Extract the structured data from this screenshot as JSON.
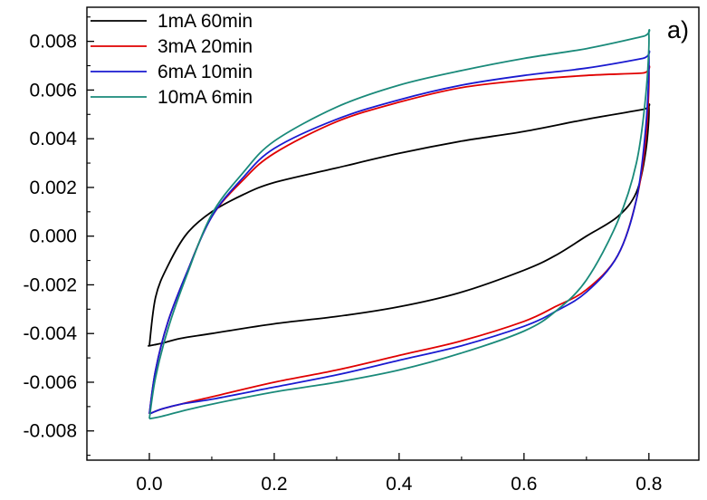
{
  "chart_data": {
    "type": "line",
    "panel_label": "a)",
    "title": "",
    "xlabel": "",
    "ylabel": "",
    "xlim": [
      -0.1,
      0.88
    ],
    "ylim": [
      -0.0092,
      0.0094
    ],
    "x_ticks": [
      0.0,
      0.2,
      0.4,
      0.6,
      0.8
    ],
    "x_tick_labels": [
      "0.0",
      "0.2",
      "0.4",
      "0.6",
      "0.8"
    ],
    "y_ticks": [
      0.008,
      0.006,
      0.004,
      0.002,
      0.0,
      -0.002,
      -0.004,
      -0.006,
      -0.008
    ],
    "y_tick_labels": [
      "0.008",
      "0.006",
      "0.004",
      "0.002",
      "0.000",
      "-0.002",
      "-0.004",
      "-0.006",
      "-0.008"
    ],
    "grid": false,
    "legend_position": "top-left",
    "series": [
      {
        "name": "1mA 60min",
        "color": "#000000",
        "x": [
          0.0,
          0.01,
          0.03,
          0.06,
          0.1,
          0.15,
          0.2,
          0.3,
          0.4,
          0.5,
          0.6,
          0.7,
          0.79,
          0.8,
          0.795,
          0.78,
          0.75,
          0.7,
          0.65,
          0.6,
          0.5,
          0.4,
          0.3,
          0.2,
          0.1,
          0.05,
          0.02,
          0.0,
          0.0
        ],
        "y": [
          -0.0045,
          -0.0025,
          -0.0012,
          0.0001,
          0.001,
          0.0017,
          0.0022,
          0.0028,
          0.0034,
          0.0039,
          0.0043,
          0.0048,
          0.0052,
          0.0053,
          0.0035,
          0.0018,
          0.0008,
          0.0,
          -0.0008,
          -0.0014,
          -0.0023,
          -0.0029,
          -0.0033,
          -0.0036,
          -0.004,
          -0.0042,
          -0.0044,
          -0.0045,
          -0.0045
        ]
      },
      {
        "name": "3mA 20min",
        "color": "#e00000",
        "x": [
          0.0,
          0.01,
          0.03,
          0.06,
          0.1,
          0.15,
          0.2,
          0.3,
          0.4,
          0.5,
          0.6,
          0.7,
          0.79,
          0.8,
          0.795,
          0.78,
          0.75,
          0.7,
          0.65,
          0.6,
          0.5,
          0.4,
          0.3,
          0.2,
          0.1,
          0.05,
          0.02,
          0.0
        ],
        "y": [
          -0.0073,
          -0.0055,
          -0.0035,
          -0.0015,
          0.0008,
          0.0023,
          0.0034,
          0.0047,
          0.0055,
          0.0061,
          0.0064,
          0.0066,
          0.0067,
          0.0068,
          0.004,
          0.0015,
          -0.0008,
          -0.0022,
          -0.0029,
          -0.0035,
          -0.0043,
          -0.0049,
          -0.0055,
          -0.006,
          -0.0066,
          -0.0069,
          -0.0071,
          -0.0073
        ]
      },
      {
        "name": "6mA 10min",
        "color": "#1a1ad0",
        "x": [
          0.0,
          0.01,
          0.03,
          0.06,
          0.1,
          0.15,
          0.2,
          0.3,
          0.4,
          0.5,
          0.6,
          0.7,
          0.79,
          0.8,
          0.795,
          0.78,
          0.75,
          0.7,
          0.65,
          0.6,
          0.5,
          0.4,
          0.3,
          0.2,
          0.1,
          0.05,
          0.02,
          0.0
        ],
        "y": [
          -0.0073,
          -0.0055,
          -0.0035,
          -0.0015,
          0.0008,
          0.0024,
          0.0036,
          0.0048,
          0.0056,
          0.0062,
          0.0066,
          0.0069,
          0.0073,
          0.0074,
          0.0045,
          0.0015,
          -0.0008,
          -0.0023,
          -0.0031,
          -0.0037,
          -0.0045,
          -0.0051,
          -0.0057,
          -0.0062,
          -0.0067,
          -0.0069,
          -0.0071,
          -0.0073
        ]
      },
      {
        "name": "10mA 6min",
        "color": "#1a8a7a",
        "x": [
          0.0,
          0.01,
          0.03,
          0.06,
          0.1,
          0.15,
          0.2,
          0.3,
          0.4,
          0.5,
          0.6,
          0.7,
          0.79,
          0.8,
          0.795,
          0.78,
          0.75,
          0.7,
          0.65,
          0.6,
          0.5,
          0.4,
          0.3,
          0.2,
          0.1,
          0.05,
          0.02,
          0.0
        ],
        "y": [
          -0.0075,
          -0.0058,
          -0.0038,
          -0.0016,
          0.0009,
          0.0026,
          0.0039,
          0.0053,
          0.0062,
          0.0068,
          0.0073,
          0.0077,
          0.0082,
          0.0083,
          0.0058,
          0.003,
          0.0006,
          -0.0018,
          -0.0031,
          -0.0039,
          -0.0048,
          -0.0055,
          -0.006,
          -0.0064,
          -0.0069,
          -0.0072,
          -0.0074,
          -0.0075
        ]
      }
    ]
  }
}
